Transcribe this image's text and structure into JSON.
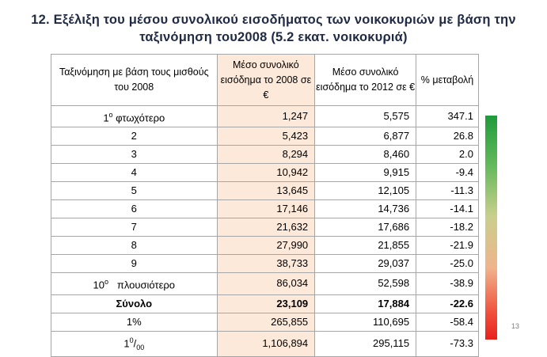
{
  "title": {
    "line1": "12. Εξέλιξη του μέσου συνολικού εισοδήματος των νοικοκυριών με βάση την",
    "line2": "ταξινόμηση του2008  (5.2 εκατ. νοικοκυριά)"
  },
  "table": {
    "headers": {
      "col1": "Ταξινόμηση με βάση τους μισθούς του 2008",
      "col2": "Μέσο συνολικό εισόδημα το 2008 σε €",
      "col3": "Μέσο συνολικό εισόδημα το 2012 σε €",
      "col4": "% μεταβολή"
    },
    "rows": [
      {
        "label": "1ο φτωχότερο",
        "v2008": "1,247",
        "v2012": "5,575",
        "pct": "347.1"
      },
      {
        "label": "2",
        "v2008": "5,423",
        "v2012": "6,877",
        "pct": "26.8"
      },
      {
        "label": "3",
        "v2008": "8,294",
        "v2012": "8,460",
        "pct": "2.0"
      },
      {
        "label": "4",
        "v2008": "10,942",
        "v2012": "9,915",
        "pct": "-9.4"
      },
      {
        "label": "5",
        "v2008": "13,645",
        "v2012": "12,105",
        "pct": "-11.3"
      },
      {
        "label": "6",
        "v2008": "17,146",
        "v2012": "14,736",
        "pct": "-14.1"
      },
      {
        "label": "7",
        "v2008": "21,632",
        "v2012": "17,686",
        "pct": "-18.2"
      },
      {
        "label": "8",
        "v2008": "27,990",
        "v2012": "21,855",
        "pct": "-21.9"
      },
      {
        "label": "9",
        "v2008": "38,733",
        "v2012": "29,037",
        "pct": "-25.0"
      },
      {
        "label": "10ο   πλουσιότερο",
        "v2008": "86,034",
        "v2012": "52,598",
        "pct": "-38.9"
      },
      {
        "label": "Σύνολο",
        "v2008": "23,109",
        "v2012": "17,884",
        "pct": "-22.6"
      },
      {
        "label": "1%",
        "v2008": "265,855",
        "v2012": "110,695",
        "pct": "-58.4"
      },
      {
        "label": "10/00",
        "v2008": "1,106,894",
        "v2012": "295,115",
        "pct": "-73.3"
      }
    ]
  },
  "colors": {
    "scale_top": "#1e9b3a",
    "scale_bottom": "#e8201c",
    "highlight": "#fde9d9"
  },
  "page_number": "13"
}
